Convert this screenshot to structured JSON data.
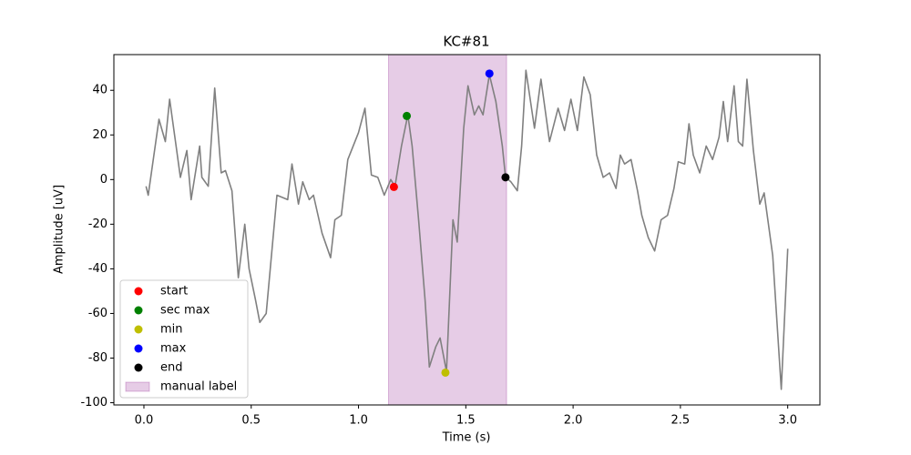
{
  "chart_data": {
    "type": "line",
    "title": "KC#81",
    "xlabel": "Time (s)",
    "ylabel": "Amplitude [uV]",
    "color": "#808080",
    "x": [
      0.01,
      0.02,
      0.07,
      0.1,
      0.12,
      0.15,
      0.17,
      0.2,
      0.22,
      0.26,
      0.27,
      0.3,
      0.33,
      0.36,
      0.38,
      0.41,
      0.44,
      0.47,
      0.49,
      0.52,
      0.54,
      0.57,
      0.62,
      0.67,
      0.69,
      0.72,
      0.74,
      0.77,
      0.79,
      0.83,
      0.87,
      0.89,
      0.92,
      0.95,
      1.0,
      1.03,
      1.06,
      1.09,
      1.12,
      1.15,
      1.17,
      1.2,
      1.23,
      1.25,
      1.28,
      1.31,
      1.33,
      1.36,
      1.38,
      1.41,
      1.44,
      1.46,
      1.49,
      1.51,
      1.54,
      1.56,
      1.58,
      1.61,
      1.64,
      1.67,
      1.685,
      1.71,
      1.74,
      1.76,
      1.78,
      1.82,
      1.85,
      1.89,
      1.93,
      1.96,
      1.99,
      2.02,
      2.05,
      2.08,
      2.11,
      2.14,
      2.17,
      2.2,
      2.22,
      2.24,
      2.27,
      2.3,
      2.32,
      2.35,
      2.38,
      2.41,
      2.44,
      2.47,
      2.49,
      2.52,
      2.54,
      2.56,
      2.59,
      2.62,
      2.65,
      2.68,
      2.7,
      2.72,
      2.75,
      2.77,
      2.79,
      2.81,
      2.84,
      2.87,
      2.89,
      2.93,
      2.97,
      3.0
    ],
    "values": [
      -3,
      -7,
      27,
      17,
      36,
      15,
      1,
      13,
      -9,
      15,
      1,
      -3,
      41,
      3,
      4,
      -5,
      -44,
      -20,
      -40,
      -54,
      -64,
      -60,
      -7,
      -9,
      7,
      -11,
      -1,
      -9,
      -7,
      -24,
      -35,
      -18,
      -16,
      9,
      21,
      32,
      2,
      1,
      -7,
      0,
      -3,
      15,
      29,
      15,
      -18,
      -54,
      -84,
      -75,
      -71,
      -86,
      -18,
      -28,
      23,
      42,
      29,
      33,
      29,
      47,
      35,
      15,
      1,
      -1,
      -5,
      15,
      49,
      23,
      45,
      17,
      32,
      22,
      36,
      22,
      46,
      38,
      11,
      1,
      3,
      -4,
      11,
      7,
      9,
      -5,
      -16,
      -26,
      -32,
      -18,
      -16,
      -4,
      8,
      7,
      25,
      11,
      3,
      15,
      9,
      19,
      35,
      17,
      42,
      17,
      15,
      45,
      13,
      -11,
      -6,
      -34,
      -94,
      -31
    ],
    "markers": [
      {
        "name": "start",
        "color": "#ff0000",
        "x": 1.165,
        "y": -3.3
      },
      {
        "name": "sec max",
        "color": "#008000",
        "x": 1.225,
        "y": 28.5
      },
      {
        "name": "min",
        "color": "#bfbf00",
        "x": 1.405,
        "y": -86.5
      },
      {
        "name": "max",
        "color": "#0000ff",
        "x": 1.61,
        "y": 47.5
      },
      {
        "name": "end",
        "color": "#000000",
        "x": 1.685,
        "y": 1
      }
    ],
    "span": {
      "name": "manual label",
      "xmin": 1.14,
      "xmax": 1.69,
      "color": "#800080"
    },
    "xlim": [
      -0.14,
      3.15
    ],
    "ylim": [
      -101,
      56
    ],
    "xticks": [
      {
        "value": 0,
        "label": "0.0"
      },
      0.5,
      {
        "value": 1,
        "label": "1.0"
      },
      1.5,
      {
        "value": 2,
        "label": "2.0"
      },
      2.5,
      {
        "value": 3,
        "label": "3.0"
      }
    ],
    "yticks": [
      -100,
      -80,
      -60,
      -40,
      -20,
      0,
      20,
      40
    ],
    "legend": "lower left"
  }
}
